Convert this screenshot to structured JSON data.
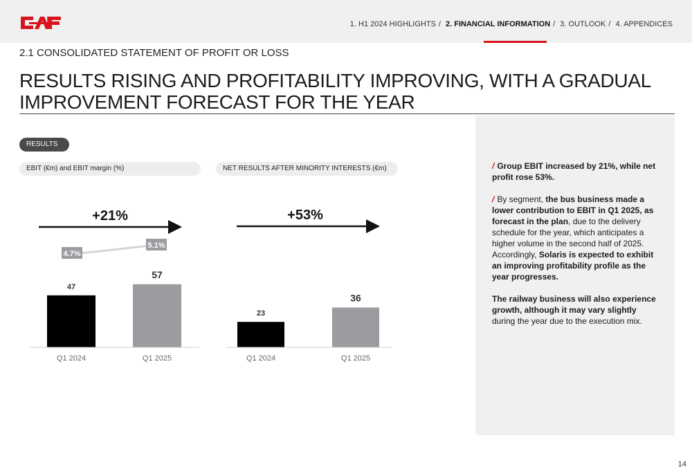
{
  "header": {
    "logo_text": "CAF",
    "nav": {
      "item1": "1. H1 2024 HIGHLIGHTS",
      "sep": "/",
      "item2": "2. FINANCIAL INFORMATION",
      "item3": "3. OUTLOOK",
      "item4": "4. APPENDICES"
    }
  },
  "section_subtitle": "2.1 CONSOLIDATED STATEMENT OF PROFIT OR LOSS",
  "headline": "RESULTS RISING AND PROFITABILITY IMPROVING, WITH A GRADUAL IMPROVEMENT FORECAST FOR THE YEAR",
  "results_pill": "RESULTS",
  "colors": {
    "accent": "#d7141e",
    "bar_prev": "#000000",
    "bar_curr": "#9a9c9f"
  },
  "chart_data": [
    {
      "type": "bar",
      "title": "EBIT (€m) and EBIT margin (%)",
      "categories": [
        "Q1 2024",
        "Q1 2025"
      ],
      "values": [
        47,
        57
      ],
      "value_labels": [
        "47",
        "57"
      ],
      "overlay_line": {
        "values": [
          4.7,
          5.1
        ],
        "labels": [
          "4.7%",
          "5.1%"
        ]
      },
      "growth_label": "+21%"
    },
    {
      "type": "bar",
      "title": "NET RESULTS AFTER MINORITY INTERESTS (€m)",
      "categories": [
        "Q1 2024",
        "Q1 2025"
      ],
      "values": [
        23,
        36
      ],
      "value_labels": [
        "23",
        "36"
      ],
      "growth_label": "+53%"
    }
  ],
  "commentary": {
    "p1_bold": "Group EBIT increased by 21%, while net profit rose 53%.",
    "p2_a": "By segment, ",
    "p2_b": "the bus business made a lower contribution to EBIT in Q1 2025, as forecast in the plan",
    "p2_c": ", due to the delivery schedule for the year, which anticipates a higher volume in the second half of 2025. Accordingly, ",
    "p2_d": "Solaris is expected to exhibit an improving profitability profile as the year progresses.",
    "p3_bold": "The railway business will also experience growth, although it may vary slightly",
    "p3_rest": " during the year due to the execution mix."
  },
  "page_number": "14"
}
